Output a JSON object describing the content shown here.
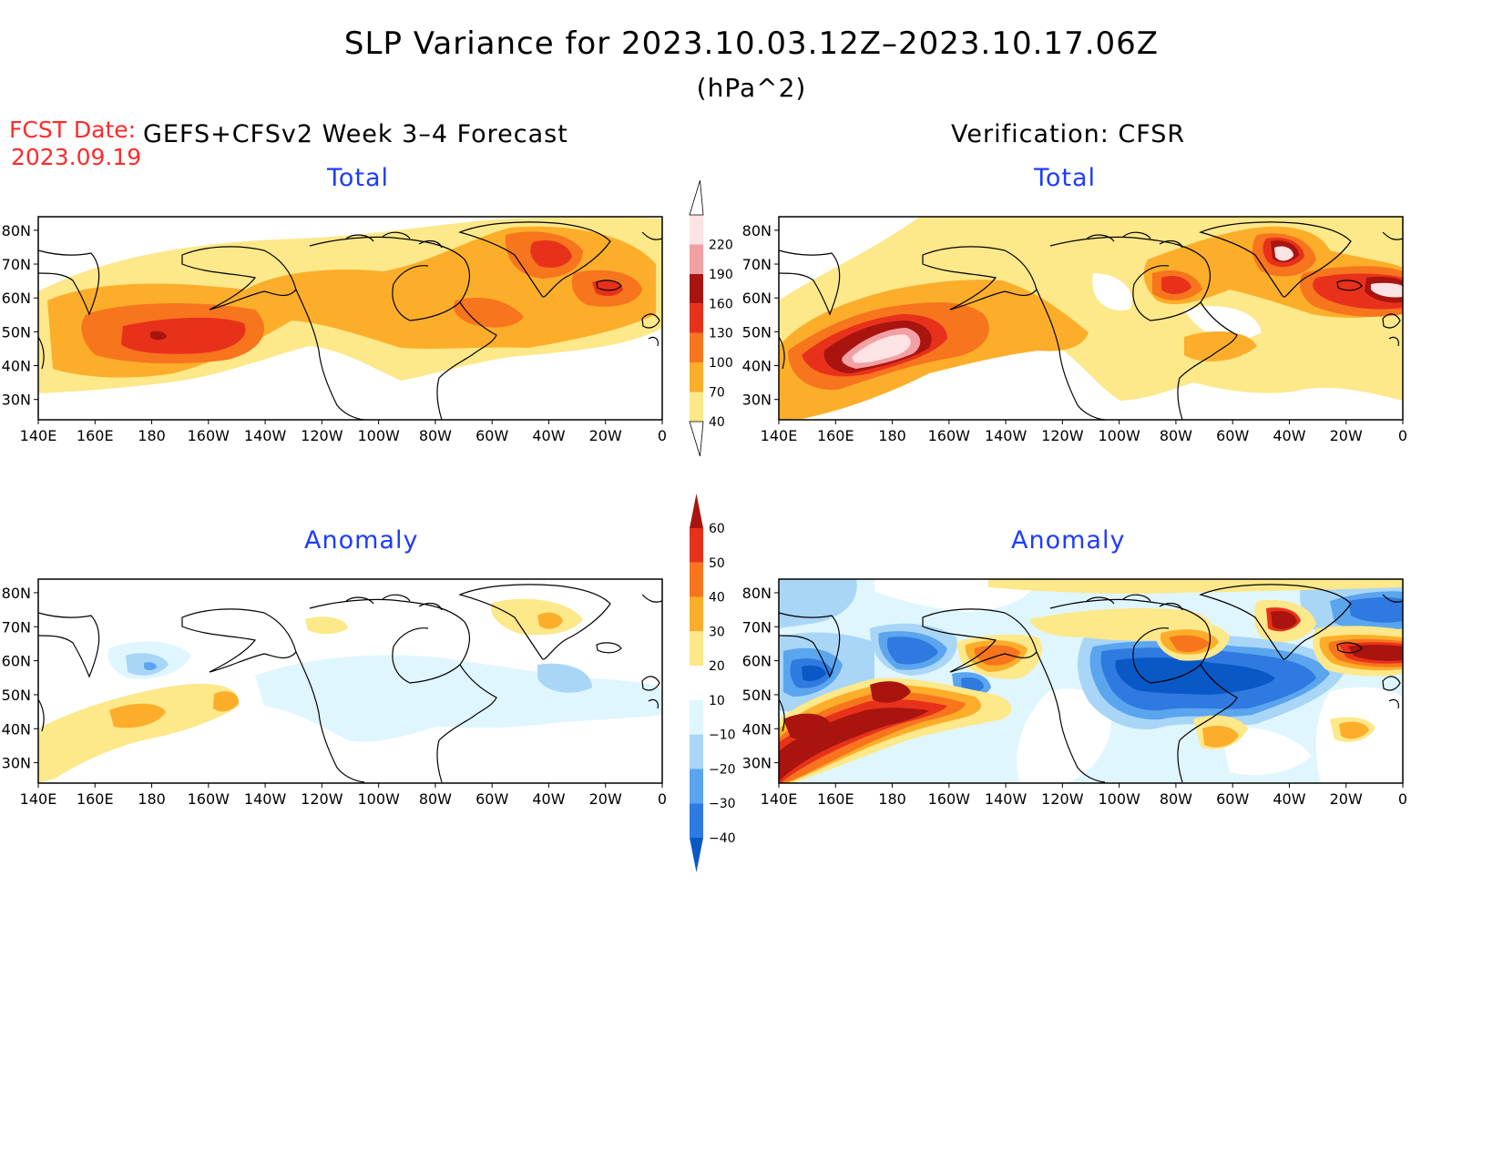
{
  "title": "SLP Variance for 2023.10.03.12Z–2023.10.17.06Z",
  "units": "(hPa^2)",
  "forecast": {
    "date_label": "FCST Date:",
    "date_value": "2023.09.19",
    "model_label": "GEFS+CFSv2 Week 3–4 Forecast"
  },
  "verification_label": "Verification: CFSR",
  "panels": {
    "fcst_total": {
      "title": "Total"
    },
    "verif_total": {
      "title": "Total"
    },
    "fcst_anom": {
      "title": "Anomaly"
    },
    "verif_anom": {
      "title": "Anomaly"
    }
  },
  "axes": {
    "lat_labels": [
      "80N",
      "70N",
      "60N",
      "50N",
      "40N",
      "30N"
    ],
    "lat_values": [
      80,
      70,
      60,
      50,
      40,
      30
    ],
    "lon_labels": [
      "140E",
      "160E",
      "180",
      "160W",
      "140W",
      "120W",
      "100W",
      "80W",
      "60W",
      "40W",
      "20W",
      "0"
    ],
    "lon_range": [
      140,
      360
    ],
    "lat_range": [
      24,
      84
    ]
  },
  "colorbars": {
    "total": {
      "levels": [
        "40",
        "70",
        "100",
        "130",
        "160",
        "190",
        "220"
      ],
      "colors": [
        "#fde88a",
        "#fcae2a",
        "#f7751d",
        "#e8311b",
        "#a9140f",
        "#f2a0a4",
        "#fde3e3"
      ]
    },
    "anomaly": {
      "levels": [
        "60",
        "50",
        "40",
        "30",
        "20",
        "10",
        "−10",
        "−20",
        "−30",
        "−40"
      ],
      "colors": [
        "#a9140f",
        "#e8311b",
        "#f7751d",
        "#fcae2a",
        "#fde88a",
        "#ffffff",
        "#dff6ff",
        "#a9d6f7",
        "#5aa5ee",
        "#2f7ae0",
        "#0a58c6"
      ]
    }
  }
}
